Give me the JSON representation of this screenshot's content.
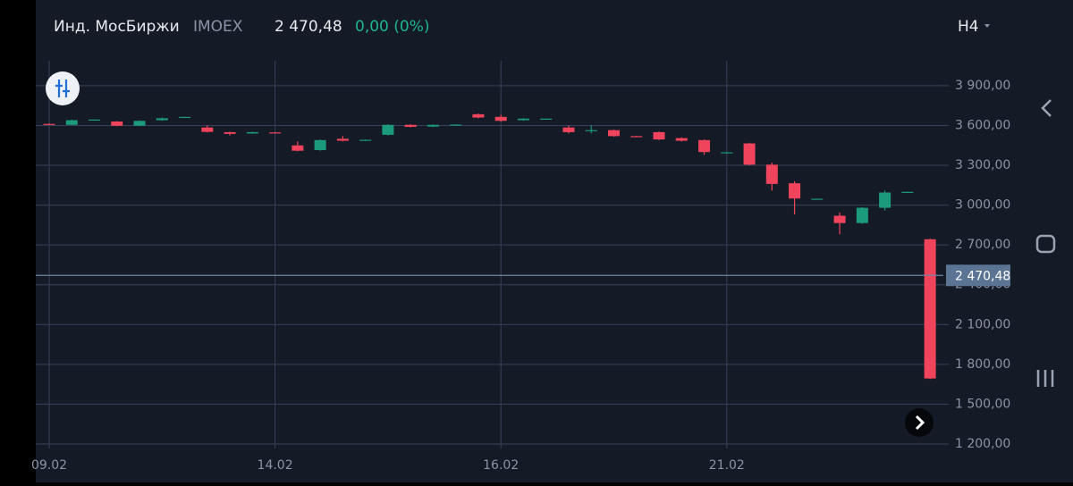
{
  "header": {
    "name": "Инд. МосБиржи",
    "ticker": "IMOEX",
    "change": "0,00 (0%)",
    "interval": "H4"
  },
  "chart_data": {
    "type": "candlestick",
    "categories": [
      "09.02",
      null,
      null,
      null,
      null,
      null,
      null,
      null,
      null,
      null,
      "14.02",
      null,
      null,
      null,
      null,
      null,
      null,
      null,
      null,
      null,
      "16.02",
      null,
      null,
      null,
      null,
      null,
      null,
      null,
      null,
      null,
      "21.02",
      null,
      null,
      null,
      null,
      null,
      null,
      null,
      null,
      null
    ],
    "open": [
      3612,
      3605,
      3642,
      3630,
      3598,
      3640,
      3662,
      3585,
      3550,
      3540,
      3548,
      3450,
      3415,
      3500,
      3488,
      3530,
      3605,
      3592,
      3605,
      3685,
      3665,
      3640,
      3650,
      3585,
      3560,
      3565,
      3520,
      3550,
      3505,
      3490,
      3395,
      3465,
      3305,
      3165,
      3045,
      2920,
      2865,
      2980,
      3095,
      2743
    ],
    "high": [
      3616,
      3644,
      3647,
      3634,
      3638,
      3660,
      3667,
      3600,
      3553,
      3553,
      3550,
      3480,
      3495,
      3520,
      3495,
      3610,
      3610,
      3608,
      3609,
      3690,
      3680,
      3655,
      3654,
      3600,
      3600,
      3570,
      3522,
      3555,
      3510,
      3495,
      3400,
      3470,
      3320,
      3180,
      3050,
      2945,
      2985,
      3110,
      3102,
      2748
    ],
    "low": [
      3604,
      3602,
      3640,
      3594,
      3595,
      3636,
      3660,
      3548,
      3525,
      3537,
      3543,
      3405,
      3410,
      3480,
      3485,
      3525,
      3585,
      3588,
      3603,
      3655,
      3630,
      3636,
      3648,
      3540,
      3540,
      3515,
      3515,
      3490,
      3480,
      3380,
      3393,
      3300,
      3110,
      2930,
      3043,
      2780,
      2860,
      2960,
      3093,
      1690
    ],
    "close": [
      3608,
      3640,
      3645,
      3598,
      3635,
      3655,
      3665,
      3552,
      3537,
      3550,
      3545,
      3410,
      3490,
      3485,
      3492,
      3605,
      3590,
      3605,
      3607,
      3660,
      3635,
      3652,
      3652,
      3550,
      3565,
      3520,
      3517,
      3495,
      3485,
      3400,
      3398,
      3305,
      3160,
      3050,
      3048,
      2865,
      2980,
      3095,
      3100,
      1694
    ],
    "up_color": "#1b9a7c",
    "down_color": "#f0445c",
    "ylim": [
      1200,
      4088
    ],
    "yticks": [
      {
        "value": 1200,
        "label": "1 200,00"
      },
      {
        "value": 1500,
        "label": "1 500,00"
      },
      {
        "value": 1800,
        "label": "1 800,00"
      },
      {
        "value": 2100,
        "label": "2 100,00"
      },
      {
        "value": 2400,
        "label": "2 400,00"
      },
      {
        "value": 2700,
        "label": "2 700,00"
      },
      {
        "value": 3000,
        "label": "3 000,00"
      },
      {
        "value": 3300,
        "label": "3 300,00"
      },
      {
        "value": 3600,
        "label": "3 600,00"
      },
      {
        "value": 3900,
        "label": "3 900,00"
      }
    ],
    "last_price": {
      "value": 2470.48,
      "label": "2 470,48"
    },
    "grid": true
  }
}
